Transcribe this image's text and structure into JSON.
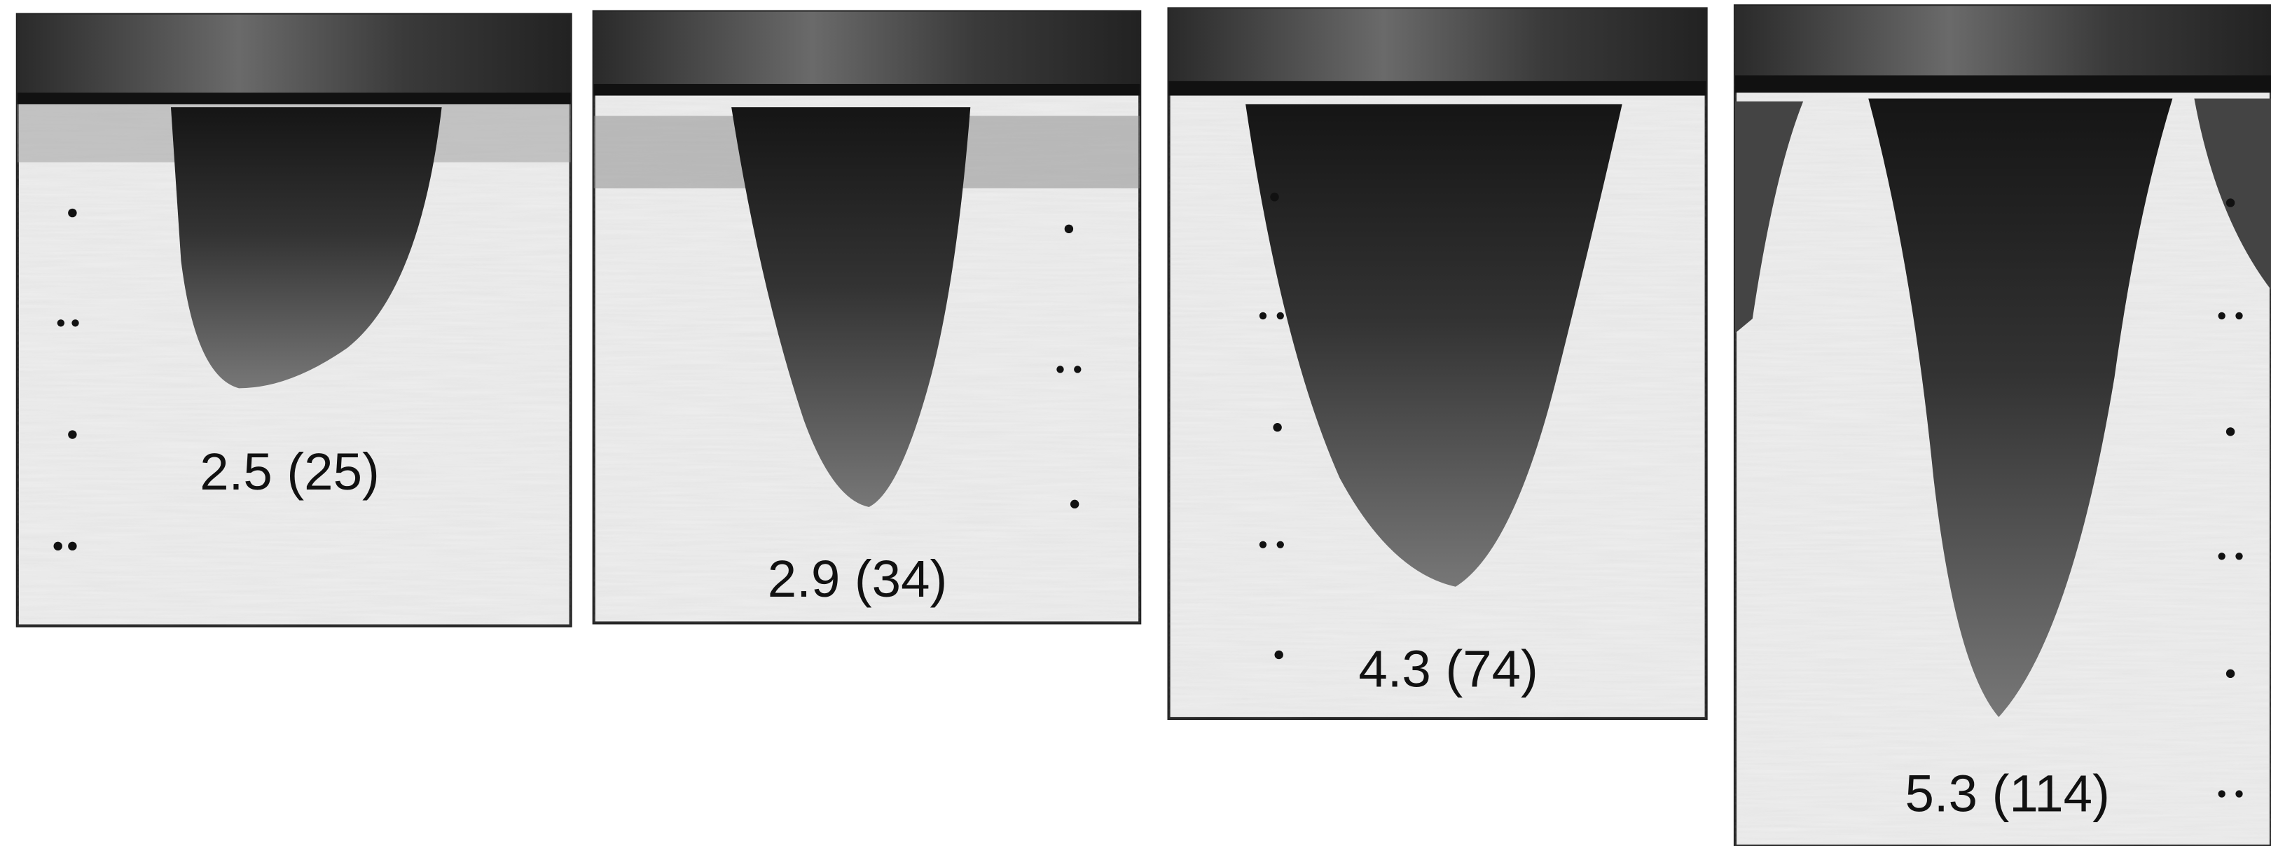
{
  "panels": [
    {
      "label": "2.5 (25)"
    },
    {
      "label": "2.9 (34)"
    },
    {
      "label": "4.3 (74)"
    },
    {
      "label": "5.3 (114)"
    }
  ]
}
